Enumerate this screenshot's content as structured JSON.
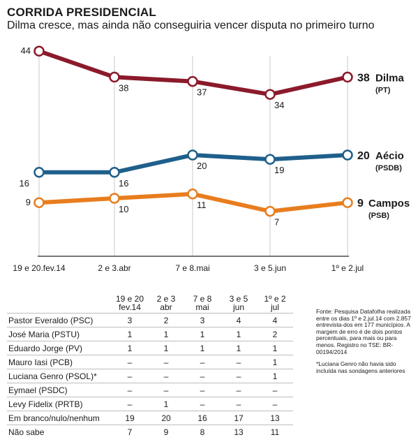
{
  "header": {
    "title": "CORRIDA PRESIDENCIAL",
    "subtitle": "Dilma cresce, mas ainda não conseguiria vencer disputa no primeiro turno"
  },
  "chart_data": {
    "type": "line",
    "categories": [
      "19 e 20.fev.14",
      "2 e 3.abr",
      "7 e 8.mai",
      "3 e 5.jun",
      "1º e 2.jul"
    ],
    "series": [
      {
        "name": "Dilma",
        "party": "(PT)",
        "color": "#8b1a2b",
        "values": [
          44,
          38,
          37,
          34,
          38
        ],
        "labels": [
          "44",
          "38",
          "37",
          "34",
          "38"
        ]
      },
      {
        "name": "Aécio",
        "party": "(PSDB)",
        "color": "#1f5f8b",
        "values": [
          16,
          16,
          20,
          19,
          20
        ],
        "labels": [
          "16",
          "16",
          "20",
          "19",
          "20"
        ]
      },
      {
        "name": "Campos",
        "party": "(PSB)",
        "color": "#e87d1e",
        "values": [
          9,
          10,
          11,
          7,
          9
        ],
        "labels": [
          "9",
          "10",
          "11",
          "7",
          "9"
        ]
      }
    ],
    "ylim": [
      0,
      50
    ]
  },
  "table": {
    "headers": [
      [
        "",
        ""
      ],
      [
        "19 e 20",
        "fev.14"
      ],
      [
        "2 e 3",
        "abr"
      ],
      [
        "7 e 8",
        "mai"
      ],
      [
        "3 e 5",
        "jun"
      ],
      [
        "1º e 2",
        "jul"
      ]
    ],
    "rows": [
      [
        "Pastor Everaldo (PSC)",
        "3",
        "2",
        "3",
        "4",
        "4"
      ],
      [
        "José Maria (PSTU)",
        "1",
        "1",
        "1",
        "1",
        "2"
      ],
      [
        "Eduardo Jorge (PV)",
        "1",
        "1",
        "1",
        "1",
        "1"
      ],
      [
        "Mauro Iasi (PCB)",
        "–",
        "–",
        "–",
        "–",
        "1"
      ],
      [
        "Luciana Genro (PSOL)*",
        "–",
        "–",
        "–",
        "–",
        "1"
      ],
      [
        "Eymael (PSDC)",
        "–",
        "–",
        "–",
        "–",
        "–"
      ],
      [
        "Levy Fidelix (PRTB)",
        "–",
        "1",
        "–",
        "–",
        "–"
      ],
      [
        "Em branco/nulo/nenhum",
        "19",
        "20",
        "16",
        "17",
        "13"
      ],
      [
        "Não sabe",
        "7",
        "9",
        "8",
        "13",
        "11"
      ]
    ]
  },
  "notes": {
    "source": "Fonte: Pesquisa Datafolha realizada entre os dias 1º e 2.jul.14 com 2.857 entrevista-dos em 177 municípios. A margem de erro é de dois pontos percentuais, para mais ou para menos. Registro no TSE: BR-00194/2014",
    "footnote": "*Luciana Genro não havia sido incluída nas sondagens anteriores"
  }
}
